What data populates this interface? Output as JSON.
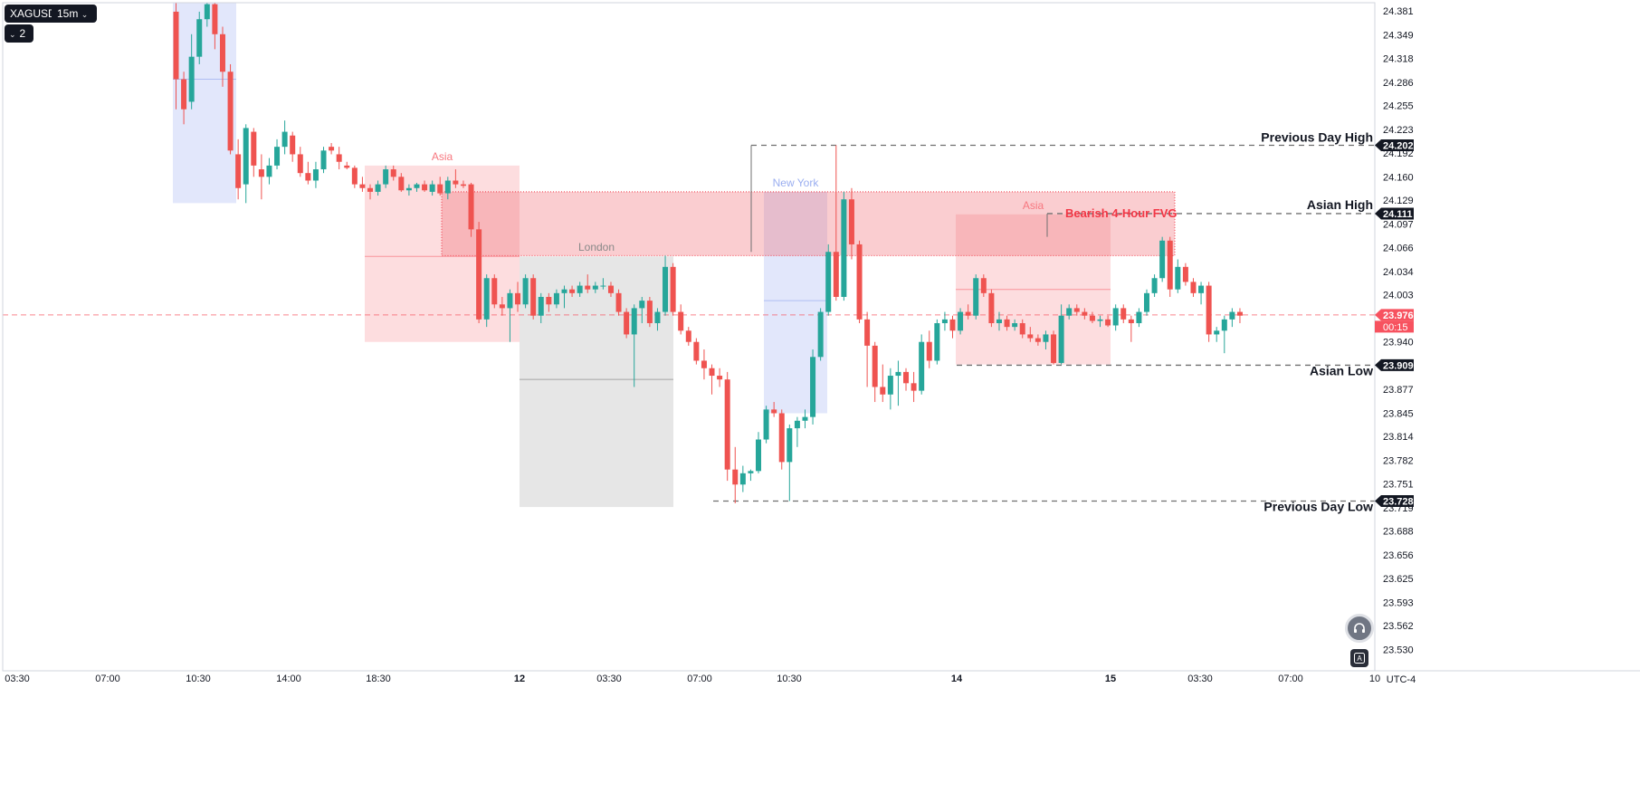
{
  "toolbar": {
    "symbol": "XAGUSD",
    "interval": "15m",
    "indicator_count": "2"
  },
  "timezone": "UTC-4",
  "colors": {
    "bull": "#26a69a",
    "bear": "#ef5350",
    "asia_box": "#f7a8ac",
    "london_box": "#bdbdbd",
    "newyork_box": "#aebcf3",
    "fvg_box": "#f08088",
    "fvg_label": "#f23645",
    "last_price": "#f7525f"
  },
  "chart_data": {
    "type": "candlestick",
    "symbol": "XAGUSD",
    "interval": "15m",
    "y_axis": {
      "range": [
        23.5,
        24.395
      ],
      "ticks": [
        "24.381",
        "24.349",
        "24.318",
        "24.286",
        "24.255",
        "24.223",
        "24.192",
        "24.160",
        "24.129",
        "24.097",
        "24.066",
        "24.034",
        "24.003",
        "23.940",
        "23.877",
        "23.845",
        "23.814",
        "23.782",
        "23.751",
        "23.719",
        "23.688",
        "23.656",
        "23.625",
        "23.593",
        "23.562",
        "23.530"
      ]
    },
    "x_axis": {
      "ticks": [
        "03:30",
        "07:00",
        "10:30",
        "14:00",
        "18:30",
        "12",
        "03:30",
        "07:00",
        "10:30",
        "14",
        "15",
        "03:30",
        "07:00",
        "10"
      ]
    },
    "price_markers": [
      {
        "value": "24.202",
        "style": "dark"
      },
      {
        "value": "24.111",
        "style": "dark"
      },
      {
        "value": "23.909",
        "style": "dark"
      },
      {
        "value": "23.728",
        "style": "dark"
      },
      {
        "value": "23.976",
        "style": "red"
      }
    ],
    "countdown": "00:15",
    "last_price": 23.976,
    "levels": [
      {
        "name": "Previous Day High",
        "price": 24.202
      },
      {
        "name": "Asian High",
        "price": 24.111
      },
      {
        "name": "Asian Low",
        "price": 23.909
      },
      {
        "name": "Previous Day Low",
        "price": 23.728
      }
    ],
    "sessions": [
      {
        "label": "",
        "kind": "newyork",
        "top": 24.395,
        "bottom": 24.125,
        "mid": 24.29
      },
      {
        "label": "Asia",
        "kind": "asia",
        "top": 24.175,
        "bottom": 23.94,
        "mid": 24.054
      },
      {
        "label": "London",
        "kind": "london",
        "top": 24.054,
        "bottom": 23.72,
        "mid": 23.89
      },
      {
        "label": "New York",
        "kind": "newyork",
        "top": 24.14,
        "bottom": 23.845,
        "mid": 23.995
      },
      {
        "label": "Asia",
        "kind": "asia",
        "top": 24.11,
        "bottom": 23.91,
        "mid": 24.01
      }
    ],
    "fvg": {
      "label": "Bearish 4-Hour FVG",
      "top": 24.14,
      "bottom": 24.055
    },
    "candles": [
      {
        "o": 24.38,
        "h": 24.395,
        "l": 24.25,
        "c": 24.29
      },
      {
        "o": 24.29,
        "h": 24.3,
        "l": 24.23,
        "c": 24.25
      },
      {
        "o": 24.26,
        "h": 24.35,
        "l": 24.25,
        "c": 24.32
      },
      {
        "o": 24.32,
        "h": 24.38,
        "l": 24.31,
        "c": 24.37
      },
      {
        "o": 24.37,
        "h": 24.395,
        "l": 24.36,
        "c": 24.39
      },
      {
        "o": 24.39,
        "h": 24.395,
        "l": 24.33,
        "c": 24.35
      },
      {
        "o": 24.35,
        "h": 24.36,
        "l": 24.28,
        "c": 24.3
      },
      {
        "o": 24.3,
        "h": 24.31,
        "l": 24.19,
        "c": 24.195
      },
      {
        "o": 24.19,
        "h": 24.21,
        "l": 24.13,
        "c": 24.145
      },
      {
        "o": 24.15,
        "h": 24.23,
        "l": 24.125,
        "c": 24.225
      },
      {
        "o": 24.22,
        "h": 24.225,
        "l": 24.16,
        "c": 24.175
      },
      {
        "o": 24.17,
        "h": 24.19,
        "l": 24.13,
        "c": 24.16
      },
      {
        "o": 24.16,
        "h": 24.185,
        "l": 24.15,
        "c": 24.175
      },
      {
        "o": 24.175,
        "h": 24.21,
        "l": 24.17,
        "c": 24.2
      },
      {
        "o": 24.2,
        "h": 24.235,
        "l": 24.19,
        "c": 24.22
      },
      {
        "o": 24.215,
        "h": 24.22,
        "l": 24.18,
        "c": 24.19
      },
      {
        "o": 24.19,
        "h": 24.2,
        "l": 24.16,
        "c": 24.165
      },
      {
        "o": 24.165,
        "h": 24.18,
        "l": 24.15,
        "c": 24.155
      },
      {
        "o": 24.155,
        "h": 24.18,
        "l": 24.145,
        "c": 24.17
      },
      {
        "o": 24.17,
        "h": 24.2,
        "l": 24.165,
        "c": 24.195
      },
      {
        "o": 24.2,
        "h": 24.205,
        "l": 24.19,
        "c": 24.195
      },
      {
        "o": 24.19,
        "h": 24.2,
        "l": 24.17,
        "c": 24.18
      },
      {
        "o": 24.175,
        "h": 24.18,
        "l": 24.17,
        "c": 24.172
      },
      {
        "o": 24.172,
        "h": 24.175,
        "l": 24.145,
        "c": 24.15
      },
      {
        "o": 24.15,
        "h": 24.16,
        "l": 24.14,
        "c": 24.145
      },
      {
        "o": 24.145,
        "h": 24.15,
        "l": 24.13,
        "c": 24.14
      },
      {
        "o": 24.14,
        "h": 24.155,
        "l": 24.135,
        "c": 24.15
      },
      {
        "o": 24.15,
        "h": 24.175,
        "l": 24.145,
        "c": 24.17
      },
      {
        "o": 24.17,
        "h": 24.175,
        "l": 24.155,
        "c": 24.16
      },
      {
        "o": 24.16,
        "h": 24.165,
        "l": 24.14,
        "c": 24.142
      },
      {
        "o": 24.142,
        "h": 24.15,
        "l": 24.135,
        "c": 24.145
      },
      {
        "o": 24.145,
        "h": 24.152,
        "l": 24.14,
        "c": 24.15
      },
      {
        "o": 24.15,
        "h": 24.155,
        "l": 24.14,
        "c": 24.142
      },
      {
        "o": 24.14,
        "h": 24.155,
        "l": 24.135,
        "c": 24.15
      },
      {
        "o": 24.15,
        "h": 24.16,
        "l": 24.135,
        "c": 24.138
      },
      {
        "o": 24.138,
        "h": 24.16,
        "l": 24.13,
        "c": 24.155
      },
      {
        "o": 24.155,
        "h": 24.17,
        "l": 24.145,
        "c": 24.15
      },
      {
        "o": 24.15,
        "h": 24.155,
        "l": 24.145,
        "c": 24.148
      },
      {
        "o": 24.15,
        "h": 24.152,
        "l": 24.08,
        "c": 24.09
      },
      {
        "o": 24.09,
        "h": 24.1,
        "l": 23.965,
        "c": 23.97
      },
      {
        "o": 23.97,
        "h": 24.03,
        "l": 23.96,
        "c": 24.025
      },
      {
        "o": 24.025,
        "h": 24.03,
        "l": 23.985,
        "c": 23.99
      },
      {
        "o": 23.99,
        "h": 24.0,
        "l": 23.975,
        "c": 23.985
      },
      {
        "o": 23.985,
        "h": 24.01,
        "l": 23.94,
        "c": 24.005
      },
      {
        "o": 24.005,
        "h": 24.02,
        "l": 23.98,
        "c": 23.99
      },
      {
        "o": 23.99,
        "h": 24.03,
        "l": 23.985,
        "c": 24.025
      },
      {
        "o": 24.025,
        "h": 24.03,
        "l": 23.97,
        "c": 23.975
      },
      {
        "o": 23.975,
        "h": 24.005,
        "l": 23.965,
        "c": 24.0
      },
      {
        "o": 24.0,
        "h": 24.005,
        "l": 23.98,
        "c": 23.99
      },
      {
        "o": 23.99,
        "h": 24.01,
        "l": 23.985,
        "c": 24.005
      },
      {
        "o": 24.005,
        "h": 24.015,
        "l": 23.985,
        "c": 24.01
      },
      {
        "o": 24.01,
        "h": 24.015,
        "l": 24.0,
        "c": 24.005
      },
      {
        "o": 24.005,
        "h": 24.02,
        "l": 24.0,
        "c": 24.015
      },
      {
        "o": 24.015,
        "h": 24.03,
        "l": 24.005,
        "c": 24.01
      },
      {
        "o": 24.01,
        "h": 24.02,
        "l": 24.005,
        "c": 24.015
      },
      {
        "o": 24.015,
        "h": 24.025,
        "l": 24.01,
        "c": 24.015
      },
      {
        "o": 24.015,
        "h": 24.02,
        "l": 24.0,
        "c": 24.005
      },
      {
        "o": 24.005,
        "h": 24.01,
        "l": 23.975,
        "c": 23.98
      },
      {
        "o": 23.98,
        "h": 23.985,
        "l": 23.945,
        "c": 23.95
      },
      {
        "o": 23.95,
        "h": 23.99,
        "l": 23.88,
        "c": 23.985
      },
      {
        "o": 23.985,
        "h": 24.0,
        "l": 23.965,
        "c": 23.995
      },
      {
        "o": 23.995,
        "h": 24.0,
        "l": 23.96,
        "c": 23.965
      },
      {
        "o": 23.965,
        "h": 23.985,
        "l": 23.955,
        "c": 23.98
      },
      {
        "o": 23.98,
        "h": 24.055,
        "l": 23.975,
        "c": 24.04
      },
      {
        "o": 24.04,
        "h": 24.045,
        "l": 23.975,
        "c": 23.98
      },
      {
        "o": 23.98,
        "h": 23.99,
        "l": 23.95,
        "c": 23.955
      },
      {
        "o": 23.955,
        "h": 23.96,
        "l": 23.935,
        "c": 23.94
      },
      {
        "o": 23.94,
        "h": 23.945,
        "l": 23.91,
        "c": 23.915
      },
      {
        "o": 23.915,
        "h": 23.93,
        "l": 23.89,
        "c": 23.905
      },
      {
        "o": 23.905,
        "h": 23.91,
        "l": 23.87,
        "c": 23.895
      },
      {
        "o": 23.895,
        "h": 23.905,
        "l": 23.88,
        "c": 23.89
      },
      {
        "o": 23.89,
        "h": 23.9,
        "l": 23.755,
        "c": 23.77
      },
      {
        "o": 23.77,
        "h": 23.8,
        "l": 23.725,
        "c": 23.75
      },
      {
        "o": 23.75,
        "h": 23.775,
        "l": 23.74,
        "c": 23.765
      },
      {
        "o": 23.765,
        "h": 23.77,
        "l": 23.755,
        "c": 23.768
      },
      {
        "o": 23.768,
        "h": 23.82,
        "l": 23.765,
        "c": 23.81
      },
      {
        "o": 23.81,
        "h": 23.855,
        "l": 23.805,
        "c": 23.85
      },
      {
        "o": 23.85,
        "h": 23.86,
        "l": 23.84,
        "c": 23.845
      },
      {
        "o": 23.845,
        "h": 23.85,
        "l": 23.77,
        "c": 23.78
      },
      {
        "o": 23.78,
        "h": 23.83,
        "l": 23.728,
        "c": 23.825
      },
      {
        "o": 23.825,
        "h": 23.84,
        "l": 23.8,
        "c": 23.835
      },
      {
        "o": 23.835,
        "h": 23.85,
        "l": 23.825,
        "c": 23.84
      },
      {
        "o": 23.84,
        "h": 23.93,
        "l": 23.83,
        "c": 23.92
      },
      {
        "o": 23.92,
        "h": 23.985,
        "l": 23.915,
        "c": 23.98
      },
      {
        "o": 23.98,
        "h": 24.07,
        "l": 23.975,
        "c": 24.06
      },
      {
        "o": 24.06,
        "h": 24.202,
        "l": 23.995,
        "c": 24.0
      },
      {
        "o": 24.0,
        "h": 24.14,
        "l": 23.995,
        "c": 24.13
      },
      {
        "o": 24.13,
        "h": 24.145,
        "l": 24.05,
        "c": 24.07
      },
      {
        "o": 24.07,
        "h": 24.075,
        "l": 23.965,
        "c": 23.97
      },
      {
        "o": 23.97,
        "h": 23.98,
        "l": 23.88,
        "c": 23.935
      },
      {
        "o": 23.935,
        "h": 23.94,
        "l": 23.86,
        "c": 23.88
      },
      {
        "o": 23.88,
        "h": 23.91,
        "l": 23.86,
        "c": 23.87
      },
      {
        "o": 23.87,
        "h": 23.905,
        "l": 23.85,
        "c": 23.895
      },
      {
        "o": 23.895,
        "h": 23.915,
        "l": 23.855,
        "c": 23.9
      },
      {
        "o": 23.9,
        "h": 23.905,
        "l": 23.875,
        "c": 23.885
      },
      {
        "o": 23.885,
        "h": 23.9,
        "l": 23.86,
        "c": 23.875
      },
      {
        "o": 23.875,
        "h": 23.95,
        "l": 23.87,
        "c": 23.94
      },
      {
        "o": 23.94,
        "h": 23.955,
        "l": 23.905,
        "c": 23.915
      },
      {
        "o": 23.915,
        "h": 23.97,
        "l": 23.91,
        "c": 23.965
      },
      {
        "o": 23.965,
        "h": 23.98,
        "l": 23.955,
        "c": 23.97
      },
      {
        "o": 23.97,
        "h": 23.975,
        "l": 23.945,
        "c": 23.955
      },
      {
        "o": 23.955,
        "h": 23.985,
        "l": 23.95,
        "c": 23.98
      },
      {
        "o": 23.98,
        "h": 23.99,
        "l": 23.97,
        "c": 23.975
      },
      {
        "o": 23.975,
        "h": 24.03,
        "l": 23.97,
        "c": 24.025
      },
      {
        "o": 24.025,
        "h": 24.03,
        "l": 24.0,
        "c": 24.005
      },
      {
        "o": 24.005,
        "h": 24.01,
        "l": 23.96,
        "c": 23.965
      },
      {
        "o": 23.965,
        "h": 23.98,
        "l": 23.955,
        "c": 23.97
      },
      {
        "o": 23.97,
        "h": 23.975,
        "l": 23.955,
        "c": 23.96
      },
      {
        "o": 23.96,
        "h": 23.97,
        "l": 23.955,
        "c": 23.965
      },
      {
        "o": 23.965,
        "h": 23.97,
        "l": 23.945,
        "c": 23.95
      },
      {
        "o": 23.95,
        "h": 23.96,
        "l": 23.94,
        "c": 23.945
      },
      {
        "o": 23.945,
        "h": 23.95,
        "l": 23.935,
        "c": 23.94
      },
      {
        "o": 23.94,
        "h": 23.955,
        "l": 23.93,
        "c": 23.95
      },
      {
        "o": 23.95,
        "h": 23.955,
        "l": 23.91,
        "c": 23.912
      },
      {
        "o": 23.912,
        "h": 23.99,
        "l": 23.91,
        "c": 23.975
      },
      {
        "o": 23.975,
        "h": 23.99,
        "l": 23.97,
        "c": 23.985
      },
      {
        "o": 23.985,
        "h": 23.99,
        "l": 23.975,
        "c": 23.98
      },
      {
        "o": 23.98,
        "h": 23.985,
        "l": 23.97,
        "c": 23.975
      },
      {
        "o": 23.975,
        "h": 23.98,
        "l": 23.965,
        "c": 23.968
      },
      {
        "o": 23.968,
        "h": 23.975,
        "l": 23.96,
        "c": 23.97
      },
      {
        "o": 23.97,
        "h": 23.975,
        "l": 23.96,
        "c": 23.962
      },
      {
        "o": 23.962,
        "h": 23.99,
        "l": 23.955,
        "c": 23.985
      },
      {
        "o": 23.985,
        "h": 23.99,
        "l": 23.965,
        "c": 23.97
      },
      {
        "o": 23.97,
        "h": 23.975,
        "l": 23.94,
        "c": 23.965
      },
      {
        "o": 23.965,
        "h": 23.985,
        "l": 23.96,
        "c": 23.98
      },
      {
        "o": 23.98,
        "h": 24.01,
        "l": 23.975,
        "c": 24.005
      },
      {
        "o": 24.005,
        "h": 24.03,
        "l": 24.0,
        "c": 24.025
      },
      {
        "o": 24.025,
        "h": 24.08,
        "l": 24.02,
        "c": 24.075
      },
      {
        "o": 24.075,
        "h": 24.08,
        "l": 24.0,
        "c": 24.01
      },
      {
        "o": 24.01,
        "h": 24.05,
        "l": 24.005,
        "c": 24.04
      },
      {
        "o": 24.04,
        "h": 24.045,
        "l": 24.015,
        "c": 24.02
      },
      {
        "o": 24.02,
        "h": 24.025,
        "l": 24.0,
        "c": 24.005
      },
      {
        "o": 24.005,
        "h": 24.02,
        "l": 23.99,
        "c": 24.015
      },
      {
        "o": 24.015,
        "h": 24.02,
        "l": 23.94,
        "c": 23.95
      },
      {
        "o": 23.95,
        "h": 23.96,
        "l": 23.94,
        "c": 23.955
      },
      {
        "o": 23.955,
        "h": 23.975,
        "l": 23.925,
        "c": 23.97
      },
      {
        "o": 23.97,
        "h": 23.985,
        "l": 23.96,
        "c": 23.98
      },
      {
        "o": 23.98,
        "h": 23.985,
        "l": 23.965,
        "c": 23.975
      }
    ]
  }
}
